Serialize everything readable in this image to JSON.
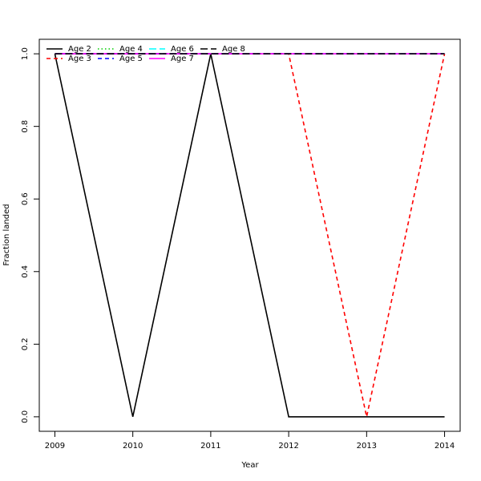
{
  "chart_data": {
    "type": "line",
    "xlabel": "Year",
    "ylabel": "Fraction landed",
    "x": [
      2009,
      2010,
      2011,
      2012,
      2013,
      2014
    ],
    "xlim": [
      2008.8,
      2014.2
    ],
    "xticks": [
      2009,
      2010,
      2011,
      2012,
      2013,
      2014
    ],
    "ylim": [
      -0.04,
      1.04
    ],
    "yticks": [
      {
        "value": 0,
        "label": "0.0"
      },
      0.2,
      0.4,
      0.6,
      0.8,
      {
        "value": 1,
        "label": "1.0"
      }
    ],
    "legend": "top-left",
    "series": [
      {
        "name": "Age 2",
        "color": "#000000",
        "linestyle": "solid",
        "values": [
          1,
          0,
          1,
          0,
          0,
          0
        ]
      },
      {
        "name": "Age 3",
        "color": "#ff0000",
        "linestyle": "dashed",
        "values": [
          1,
          1,
          1,
          1,
          0,
          1
        ]
      },
      {
        "name": "Age 4",
        "color": "#00cd00",
        "linestyle": "dotted",
        "values": [
          1,
          1,
          1,
          1,
          1,
          1
        ]
      },
      {
        "name": "Age 5",
        "color": "#0000ff",
        "linestyle": "dashed",
        "values": [
          1,
          1,
          1,
          1,
          1,
          1
        ]
      },
      {
        "name": "Age 6",
        "color": "#00ffff",
        "linestyle": "longdash",
        "values": [
          1,
          1,
          1,
          1,
          1,
          1
        ]
      },
      {
        "name": "Age 7",
        "color": "#ff00ff",
        "linestyle": "solid",
        "values": [
          1,
          1,
          1,
          1,
          1,
          1
        ]
      },
      {
        "name": "Age 8",
        "color": "#000000",
        "linestyle": "longdash",
        "values": [
          1,
          1,
          1,
          1,
          1,
          1
        ]
      }
    ]
  }
}
